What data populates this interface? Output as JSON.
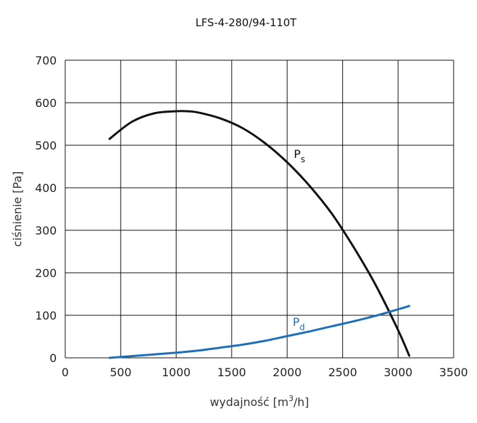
{
  "chart_data": {
    "type": "line",
    "title": "LFS-4-280/94-110T",
    "xlabel_main": "wydajność [m",
    "xlabel_sup": "3",
    "xlabel_end": "/h]",
    "ylabel": "ciśnienie [Pa]",
    "xlim": [
      0,
      3500
    ],
    "ylim": [
      0,
      700
    ],
    "xticks": [
      "0",
      "500",
      "1000",
      "1500",
      "2000",
      "2500",
      "3000",
      "3500"
    ],
    "yticks": [
      "0",
      "100",
      "200",
      "300",
      "400",
      "500",
      "600",
      "700"
    ],
    "grid": true,
    "series": [
      {
        "name": "P",
        "subscript": "s",
        "color": "#111111",
        "x": [
          400,
          600,
          800,
          1000,
          1100,
          1200,
          1400,
          1600,
          1800,
          2000,
          2200,
          2400,
          2600,
          2800,
          3000,
          3100
        ],
        "y": [
          515,
          555,
          575,
          580,
          580,
          577,
          563,
          540,
          505,
          460,
          405,
          340,
          260,
          170,
          65,
          5
        ]
      },
      {
        "name": "P",
        "subscript": "d",
        "color": "#1f6fb8",
        "x": [
          400,
          600,
          800,
          1000,
          1200,
          1400,
          1600,
          1800,
          2000,
          2200,
          2400,
          2600,
          2800,
          3000,
          3100
        ],
        "y": [
          0,
          4,
          8,
          12,
          17,
          24,
          31,
          40,
          51,
          62,
          74,
          86,
          99,
          114,
          122
        ]
      }
    ]
  }
}
